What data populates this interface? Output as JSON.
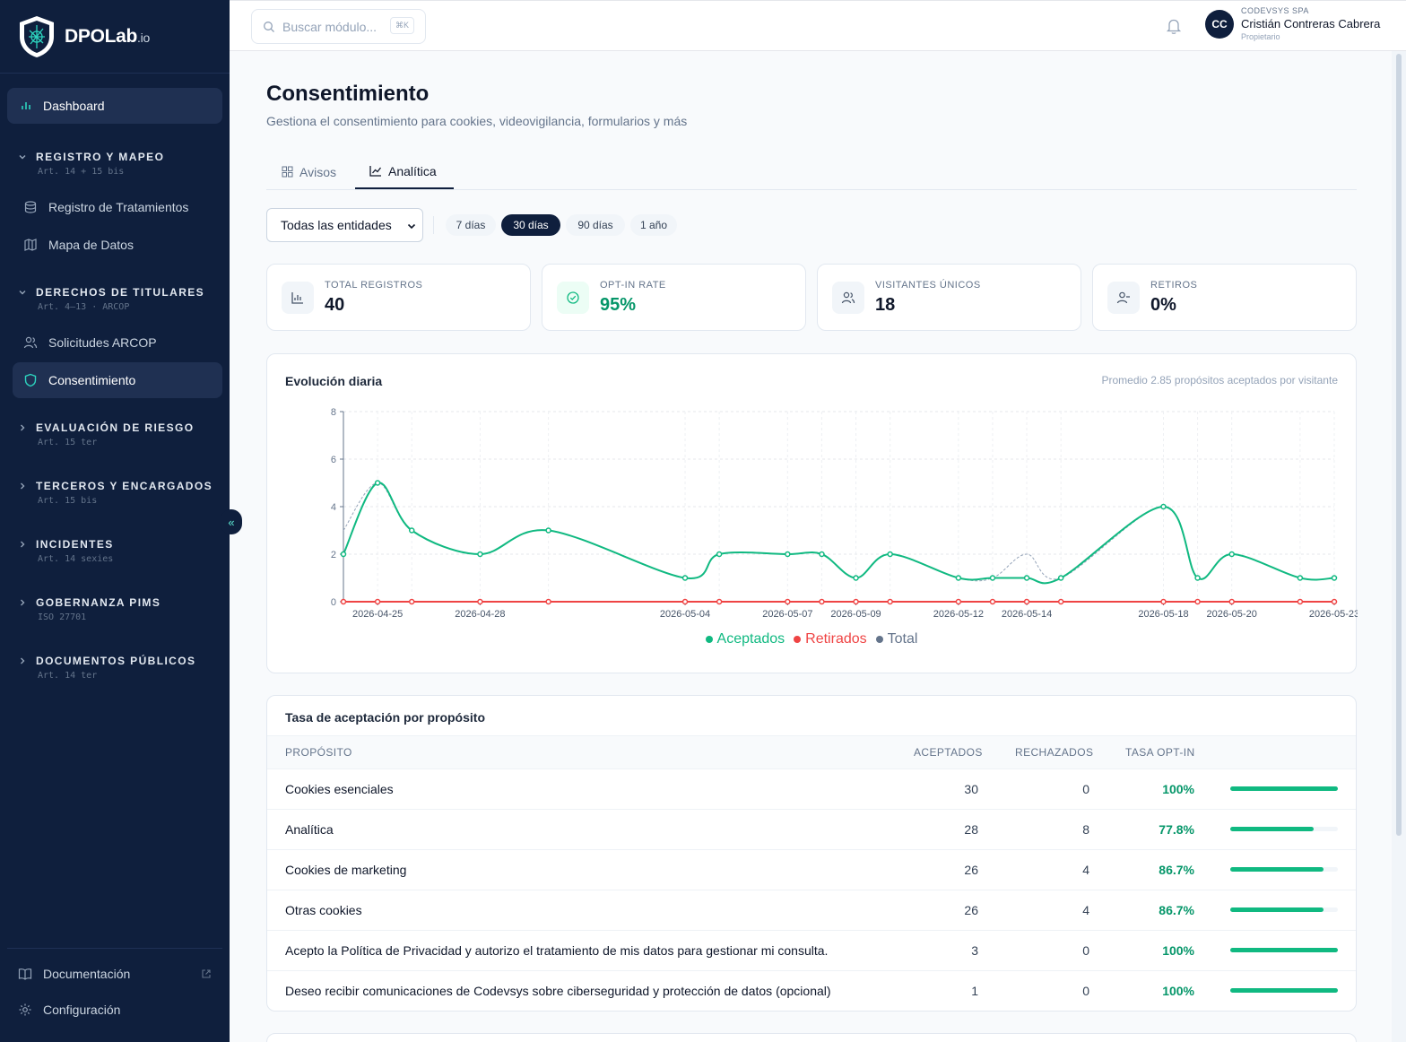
{
  "brand": {
    "name": "DPOLab",
    "suffix": ".io"
  },
  "sidebar": {
    "dashboard": "Dashboard",
    "sections": [
      {
        "title": "REGISTRO Y MAPEO",
        "sub": "Art. 14 + 15 bis",
        "items": [
          "Registro de Tratamientos",
          "Mapa de Datos"
        ]
      },
      {
        "title": "DERECHOS DE TITULARES",
        "sub": "Art. 4–13 · ARCOP",
        "items": [
          "Solicitudes ARCOP",
          "Consentimiento"
        ]
      },
      {
        "title": "EVALUACIÓN DE RIESGO",
        "sub": "Art. 15 ter"
      },
      {
        "title": "TERCEROS Y ENCARGADOS",
        "sub": "Art. 15 bis"
      },
      {
        "title": "INCIDENTES",
        "sub": "Art. 14 sexies"
      },
      {
        "title": "GOBERNANZA PIMS",
        "sub": "ISO 27701"
      },
      {
        "title": "DOCUMENTOS PÚBLICOS",
        "sub": "Art. 14 ter"
      }
    ],
    "footer": {
      "docs": "Documentación",
      "settings": "Configuración"
    },
    "collapse_glyph": "«"
  },
  "topbar": {
    "search_placeholder": "Buscar módulo...",
    "shortcut": "⌘K",
    "user": {
      "initials": "CC",
      "company": "CODEVSYS SPA",
      "name": "Cristián Contreras Cabrera",
      "role": "Propietario"
    }
  },
  "page": {
    "title": "Consentimiento",
    "subtitle": "Gestiona el consentimiento para cookies, videovigilancia, formularios y más",
    "tabs": [
      "Avisos",
      "Analítica"
    ],
    "active_tab": "Analítica"
  },
  "filters": {
    "entity": "Todas las entidades",
    "ranges": [
      "7 días",
      "30 días",
      "90 días",
      "1 año"
    ],
    "active_range": "30 días"
  },
  "stats": [
    {
      "label": "TOTAL REGISTROS",
      "value": "40",
      "icon": "bar-chart-icon"
    },
    {
      "label": "OPT-IN RATE",
      "value": "95%",
      "icon": "check-circle-icon"
    },
    {
      "label": "VISITANTES ÚNICOS",
      "value": "18",
      "icon": "users-icon"
    },
    {
      "label": "RETIROS",
      "value": "0%",
      "icon": "user-minus-icon"
    }
  ],
  "colors": {
    "accepted": "#10b981",
    "withdrawn": "#ef4444",
    "total": "#64748b",
    "navy": "#0f1f3d",
    "rate_green": "#059669"
  },
  "chart": {
    "title": "Evolución diaria",
    "note": "Promedio 2.85 propósitos aceptados por visitante"
  },
  "chart_data": {
    "type": "line",
    "x": [
      "2026-04-24",
      "2026-04-25",
      "2026-04-26",
      "2026-04-28",
      "2026-04-30",
      "2026-05-04",
      "2026-05-05",
      "2026-05-07",
      "2026-05-08",
      "2026-05-09",
      "2026-05-10",
      "2026-05-12",
      "2026-05-13",
      "2026-05-14",
      "2026-05-15",
      "2026-05-18",
      "2026-05-19",
      "2026-05-20",
      "2026-05-22",
      "2026-05-23"
    ],
    "tick_labels": [
      "2026-04-25",
      "2026-04-28",
      "2026-05-04",
      "2026-05-07",
      "2026-05-09",
      "2026-05-12",
      "2026-05-14",
      "2026-05-18",
      "2026-05-20",
      "2026-05-23"
    ],
    "series": [
      {
        "name": "Aceptados",
        "values": [
          2,
          5,
          3,
          2,
          3,
          1,
          2,
          2,
          2,
          1,
          2,
          1,
          1,
          1,
          1,
          4,
          1,
          2,
          1,
          1
        ]
      },
      {
        "name": "Retirados",
        "values": [
          0,
          0,
          0,
          0,
          0,
          0,
          0,
          0,
          0,
          0,
          0,
          0,
          0,
          0,
          0,
          0,
          0,
          0,
          0,
          0
        ]
      },
      {
        "name": "Total",
        "values": [
          3,
          5,
          3,
          2,
          3,
          1,
          2,
          2,
          2,
          1,
          2,
          1,
          1,
          2,
          1,
          4,
          1,
          2,
          1,
          1
        ]
      }
    ],
    "ylim": [
      0,
      8
    ],
    "yticks": [
      0,
      2,
      4,
      6,
      8
    ],
    "grid": true,
    "legend": "bottom"
  },
  "table": {
    "title": "Tasa de aceptación por propósito",
    "headers": {
      "purpose": "PROPÓSITO",
      "accepted": "ACEPTADOS",
      "rejected": "RECHAZADOS",
      "rate": "TASA OPT-IN"
    },
    "rows": [
      {
        "purpose": "Cookies esenciales",
        "accepted": "30",
        "rejected": "0",
        "rate": "100%",
        "fill": 1.0
      },
      {
        "purpose": "Analítica",
        "accepted": "28",
        "rejected": "8",
        "rate": "77.8%",
        "fill": 0.778
      },
      {
        "purpose": "Cookies de marketing",
        "accepted": "26",
        "rejected": "4",
        "rate": "86.7%",
        "fill": 0.867
      },
      {
        "purpose": "Otras cookies",
        "accepted": "26",
        "rejected": "4",
        "rate": "86.7%",
        "fill": 0.867
      },
      {
        "purpose": "Acepto la Política de Privacidad y autorizo el tratamiento de mis datos para gestionar mi consulta.",
        "accepted": "3",
        "rejected": "0",
        "rate": "100%",
        "fill": 1.0
      },
      {
        "purpose": "Deseo recibir comunicaciones de Codevsys sobre ciberseguridad y protección de datos (opcional)",
        "accepted": "1",
        "rejected": "0",
        "rate": "100%",
        "fill": 1.0
      }
    ]
  }
}
